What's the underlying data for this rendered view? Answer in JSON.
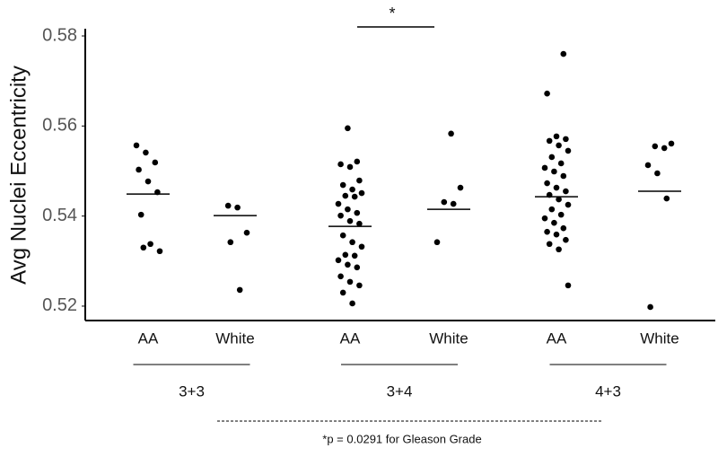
{
  "chart_data": {
    "type": "strip",
    "ylabel": "Avg Nuclei Eccentricity",
    "ylim": [
      0.5168,
      0.5816
    ],
    "yticks": [
      0.52,
      0.54,
      0.56,
      0.58
    ],
    "color": "#000000",
    "groups": [
      "3+3",
      "3+4",
      "4+3"
    ],
    "annotation": "*",
    "footnote": "*p = 0.0291 for Gleason Grade",
    "series": [
      {
        "name": "AA",
        "mean": 0.5449,
        "values": [
          0.5557,
          0.5541,
          0.5519,
          0.5503,
          0.5477,
          0.5453,
          0.5403,
          0.5338,
          0.5322,
          0.533
        ]
      },
      {
        "name": "White",
        "mean": 0.5401,
        "values": [
          0.5423,
          0.5419,
          0.5363,
          0.5342,
          0.5236
        ]
      },
      {
        "name": "AA",
        "mean": 0.5377,
        "values": [
          0.5595,
          0.5521,
          0.5515,
          0.5509,
          0.5479,
          0.5469,
          0.5459,
          0.5451,
          0.5445,
          0.5443,
          0.5427,
          0.5415,
          0.5407,
          0.5401,
          0.5389,
          0.5383,
          0.5357,
          0.5342,
          0.5332,
          0.5314,
          0.5312,
          0.5302,
          0.5292,
          0.5286,
          0.5266,
          0.5254,
          0.5246,
          0.523,
          0.5206
        ]
      },
      {
        "name": "White",
        "mean": 0.5415,
        "values": [
          0.5583,
          0.5463,
          0.5431,
          0.5427,
          0.5342
        ]
      },
      {
        "name": "AA",
        "mean": 0.5443,
        "values": [
          0.576,
          0.5672,
          0.5577,
          0.5571,
          0.5567,
          0.5557,
          0.5545,
          0.5531,
          0.5517,
          0.5507,
          0.5499,
          0.5489,
          0.5473,
          0.5463,
          0.5455,
          0.5447,
          0.5437,
          0.5425,
          0.5415,
          0.5403,
          0.5395,
          0.5385,
          0.5373,
          0.5365,
          0.5359,
          0.5347,
          0.5338,
          0.5326,
          0.5246
        ]
      },
      {
        "name": "White",
        "mean": 0.5455,
        "values": [
          0.5561,
          0.5555,
          0.5551,
          0.5513,
          0.5495,
          0.5439,
          0.5198
        ]
      }
    ]
  }
}
